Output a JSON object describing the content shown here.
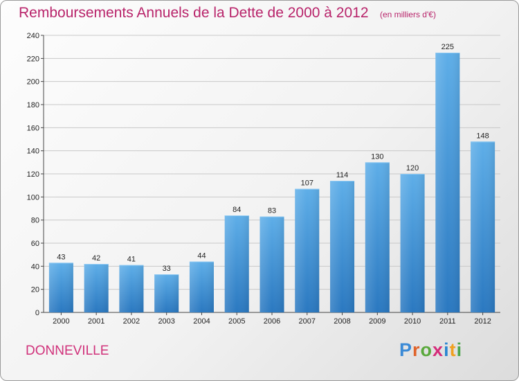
{
  "chart_data": {
    "type": "bar",
    "title": "Remboursements Annuels de la Dette de 2000 à 2012",
    "subtitle": "(en milliers d'€)",
    "categories": [
      "2000",
      "2001",
      "2002",
      "2003",
      "2004",
      "2005",
      "2006",
      "2007",
      "2008",
      "2009",
      "2010",
      "2011",
      "2012"
    ],
    "values": [
      43,
      42,
      41,
      33,
      44,
      84,
      83,
      107,
      114,
      130,
      120,
      225,
      148
    ],
    "ylim": [
      0,
      240
    ],
    "yticks": [
      0,
      20,
      40,
      60,
      80,
      100,
      120,
      140,
      160,
      180,
      200,
      220,
      240
    ],
    "grid": true,
    "data_labels": true,
    "bar_color": "#3d8fd6"
  },
  "footer": {
    "commune": "DONNEVILLE",
    "logo_text": "Proxiti",
    "logo_colors": [
      "#3b8ad6",
      "#e0632a",
      "#5aa93c",
      "#d52c7a",
      "#2a86d1",
      "#f0a020",
      "#4aa54a"
    ]
  },
  "colors": {
    "title": "#b8236a",
    "commune": "#d0307a"
  }
}
